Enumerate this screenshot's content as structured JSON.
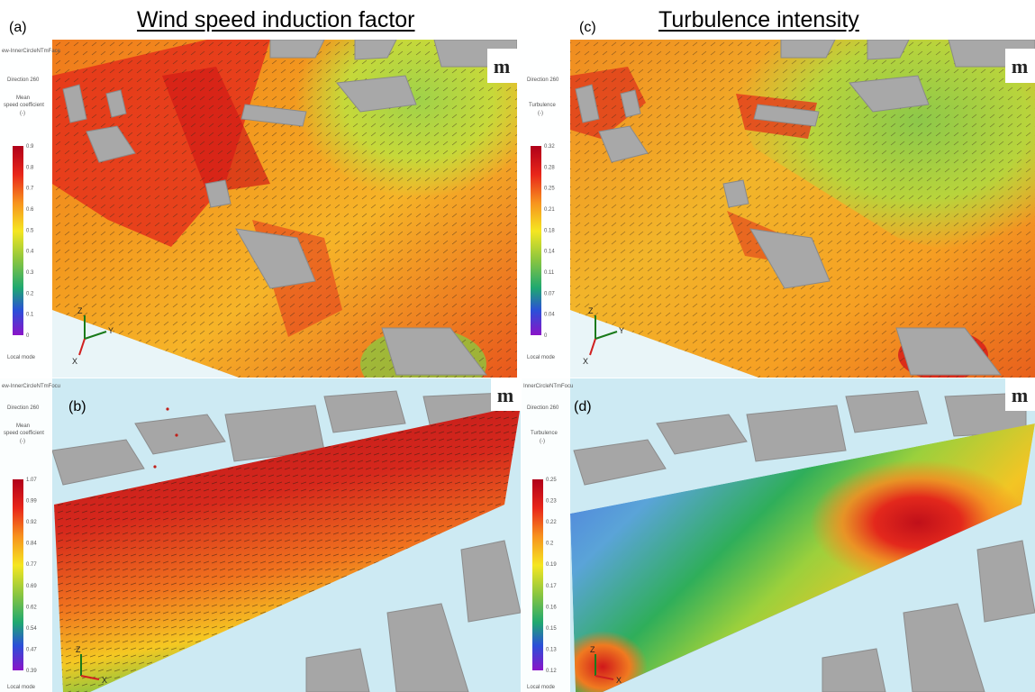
{
  "header": {
    "label_a": "(a)",
    "title_a": "Wind speed induction factor",
    "label_c": "(c)",
    "title_c": "Turbulence intensity"
  },
  "panels": [
    {
      "id": "a",
      "label": "",
      "window_title": "ew-InnerCircleNTmFace",
      "direction": "Direction 260",
      "legend_title_1": "Mean",
      "legend_title_2": "speed coefficient",
      "legend_unit": "(-)",
      "ticks": [
        "0.9",
        "0.8",
        "0.7",
        "0.6",
        "0.5",
        "0.4",
        "0.3",
        "0.2",
        "0.1",
        "0"
      ],
      "mode": "Local mode"
    },
    {
      "id": "c",
      "label": "",
      "window_title": "",
      "direction": "Direction 260",
      "legend_title_1": "Turbulence",
      "legend_title_2": "",
      "legend_unit": "(-)",
      "ticks": [
        "0.32",
        "0.28",
        "0.25",
        "0.21",
        "0.18",
        "0.14",
        "0.11",
        "0.07",
        "0.04",
        "0"
      ],
      "mode": "Local mode"
    },
    {
      "id": "b",
      "label": "(b)",
      "window_title": "ew-InnerCircleNTmFocu",
      "direction": "Direction 260",
      "legend_title_1": "Mean",
      "legend_title_2": "speed coefficient",
      "legend_unit": "(-)",
      "ticks": [
        "1.07",
        "0.99",
        "0.92",
        "0.84",
        "0.77",
        "0.69",
        "0.62",
        "0.54",
        "0.47",
        "0.39"
      ],
      "mode": "Local mode"
    },
    {
      "id": "d",
      "label": "(d)",
      "window_title": "InnerCircleNTmFocu",
      "direction": "Direction 260",
      "legend_title_1": "Turbulence",
      "legend_title_2": "",
      "legend_unit": "(-)",
      "ticks": [
        "0.25",
        "0.23",
        "0.22",
        "0.2",
        "0.19",
        "0.17",
        "0.16",
        "0.15",
        "0.13",
        "0.12"
      ],
      "mode": "Local mode"
    }
  ],
  "logo_text": "m",
  "axes": {
    "z": "Z",
    "y": "Y",
    "x": "X"
  }
}
